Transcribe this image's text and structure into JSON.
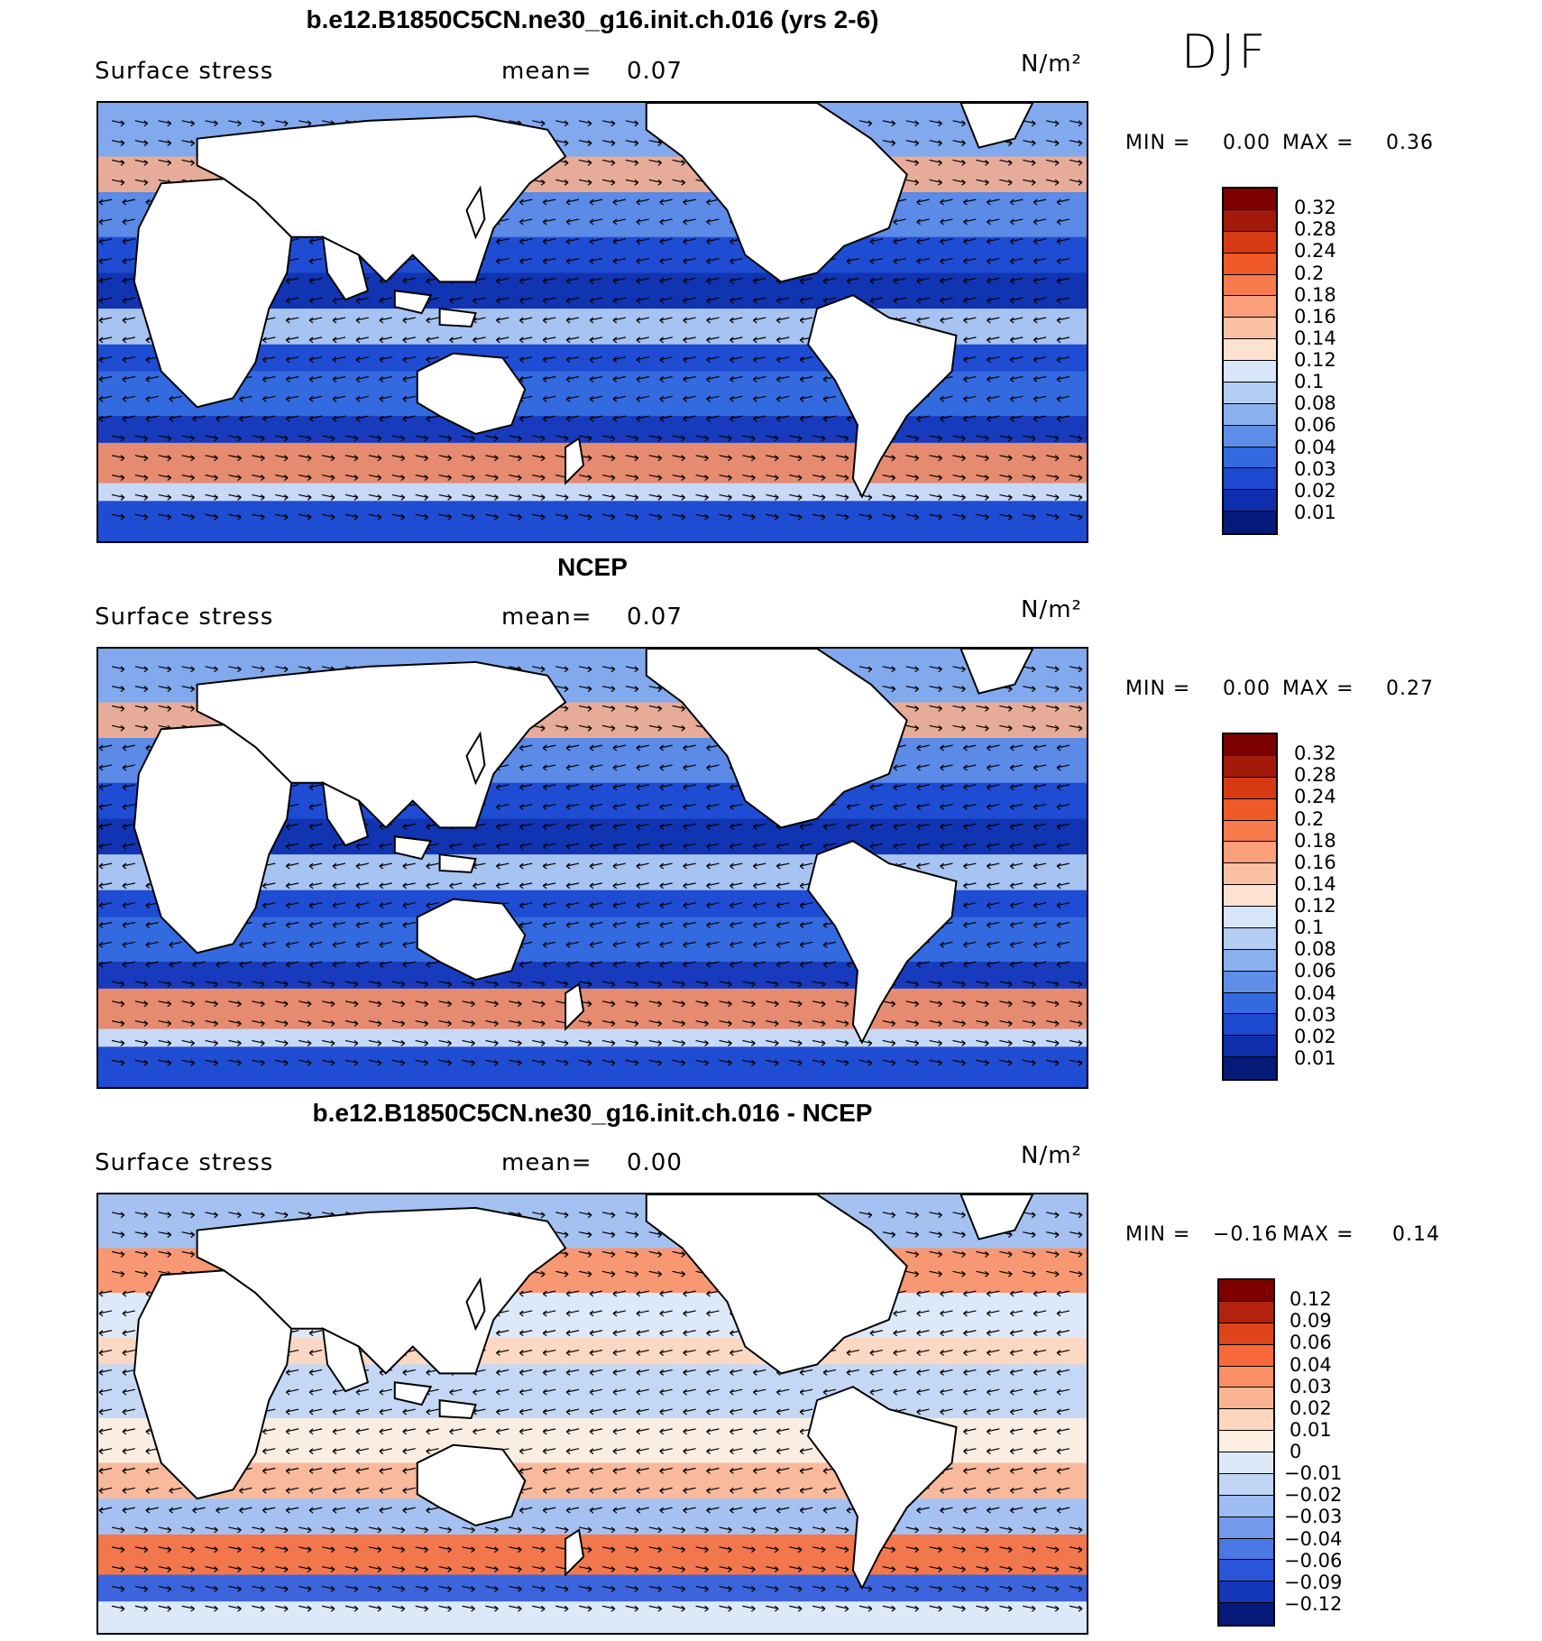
{
  "season": "DJF",
  "panels": [
    {
      "title": "b.e12.B1850C5CN.ne30_g16.init.ch.016 (yrs 2-6)",
      "variable": "Surface stress",
      "mean_label": "mean=",
      "mean_value": "0.07",
      "units": "N/m²",
      "min_label": "MIN =",
      "min_value": "0.00",
      "max_label": "MAX =",
      "max_value": "0.36",
      "colorbar_labels": [
        "0.32",
        "0.28",
        "0.24",
        "0.2",
        "0.18",
        "0.16",
        "0.14",
        "0.12",
        "0.1",
        "0.08",
        "0.06",
        "0.04",
        "0.03",
        "0.02",
        "0.01"
      ]
    },
    {
      "title": "NCEP",
      "variable": "Surface stress",
      "mean_label": "mean=",
      "mean_value": "0.07",
      "units": "N/m²",
      "min_label": "MIN =",
      "min_value": "0.00",
      "max_label": "MAX =",
      "max_value": "0.27",
      "colorbar_labels": [
        "0.32",
        "0.28",
        "0.24",
        "0.2",
        "0.18",
        "0.16",
        "0.14",
        "0.12",
        "0.1",
        "0.08",
        "0.06",
        "0.04",
        "0.03",
        "0.02",
        "0.01"
      ]
    },
    {
      "title": "b.e12.B1850C5CN.ne30_g16.init.ch.016 - NCEP",
      "variable": "Surface stress",
      "mean_label": "mean=",
      "mean_value": "0.00",
      "units": "N/m²",
      "min_label": "MIN =",
      "min_value": "−0.16",
      "max_label": "MAX =",
      "max_value": "0.14",
      "colorbar_labels": [
        "0.12",
        "0.09",
        "0.06",
        "0.04",
        "0.03",
        "0.02",
        "0.01",
        "0",
        "−0.01",
        "−0.02",
        "−0.03",
        "−0.04",
        "−0.06",
        "−0.09",
        "−0.12"
      ]
    }
  ],
  "colors": {
    "seq": [
      "#7f0000",
      "#a31a0b",
      "#d63a12",
      "#f05a28",
      "#f77b4d",
      "#fb9e7a",
      "#fcc1a4",
      "#fde3cf",
      "#d7e6f8",
      "#b4cdf3",
      "#8bb0ee",
      "#5f8ee8",
      "#336ae0",
      "#1c49d0",
      "#0d2fae",
      "#061a7a"
    ],
    "div": [
      "#7f0000",
      "#b3220d",
      "#e0441a",
      "#f56a38",
      "#f98f63",
      "#fbb491",
      "#fdd6bd",
      "#fdeee0",
      "#dde9f8",
      "#c1d6f4",
      "#9dbcef",
      "#7399ea",
      "#4b78e4",
      "#2a55d8",
      "#1436b8",
      "#061a7a"
    ],
    "land": "#ffffff",
    "coast": "#000000"
  }
}
